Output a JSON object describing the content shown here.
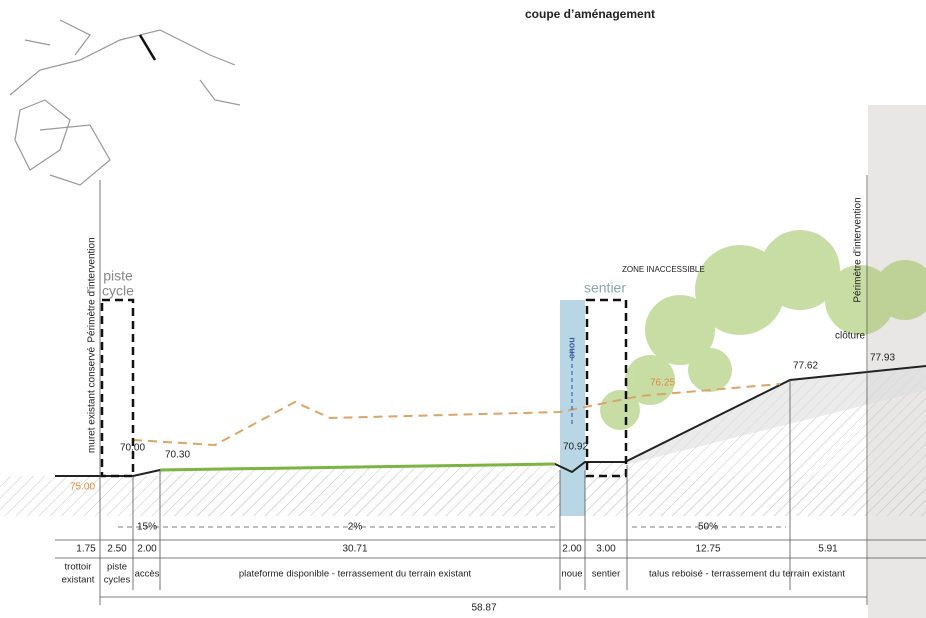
{
  "title": "coupe d’aménagement",
  "perimeter_labels": [
    "Périmètre d'intervention",
    "Périmètre d'intervention"
  ],
  "zones": {
    "piste_cycle": [
      "piste",
      "cycle"
    ],
    "sentier": "sentier",
    "noue": "noue",
    "zone_inaccessible": "ZONE INACCESSIBLE",
    "muret": "muret existant conservé",
    "cloture": "clôture"
  },
  "elevations": {
    "left_top": "70.00",
    "left_orange": "75.00",
    "left_platform": "70.30",
    "noue": "70.92",
    "slope_orange": "76.25",
    "talus_top": "77.62",
    "right": "77.93"
  },
  "slopes": [
    "15%",
    "2%",
    "50%"
  ],
  "dimensions": [
    "1.75",
    "2.50",
    "2.00",
    "30.71",
    "2.00",
    "3.00",
    "12.75",
    "5.91"
  ],
  "segment_labels": [
    [
      "trottoir",
      "existant"
    ],
    [
      "piste",
      "cycles"
    ],
    [
      "accès"
    ],
    [
      "plateforme disponible - terrassement du terrain existant"
    ],
    [
      "noue"
    ],
    [
      "sentier"
    ],
    [
      "talus reboisé - terrassement du terrain existant"
    ]
  ],
  "total": "58.87"
}
